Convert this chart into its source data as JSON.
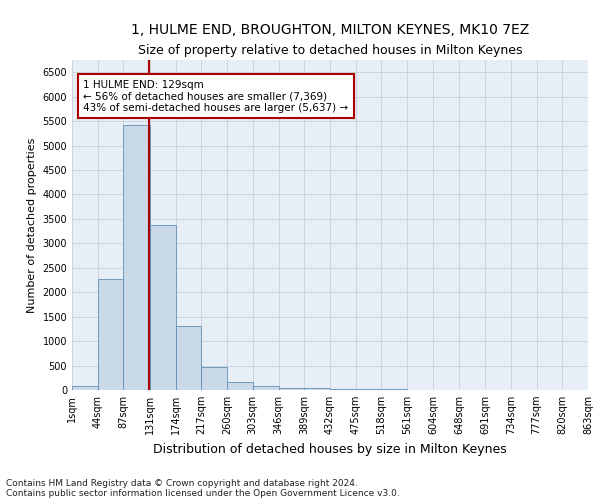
{
  "title": "1, HULME END, BROUGHTON, MILTON KEYNES, MK10 7EZ",
  "subtitle": "Size of property relative to detached houses in Milton Keynes",
  "xlabel": "Distribution of detached houses by size in Milton Keynes",
  "ylabel": "Number of detached properties",
  "footnote1": "Contains HM Land Registry data © Crown copyright and database right 2024.",
  "footnote2": "Contains public sector information licensed under the Open Government Licence v3.0.",
  "bin_edges": [
    1,
    44,
    87,
    131,
    174,
    217,
    260,
    303,
    346,
    389,
    432,
    475,
    518,
    561,
    604,
    648,
    691,
    734,
    777,
    820,
    863
  ],
  "bar_values": [
    75,
    2280,
    5420,
    3380,
    1310,
    480,
    160,
    75,
    50,
    40,
    30,
    20,
    15,
    10,
    8,
    5,
    3,
    2,
    1,
    1
  ],
  "bar_color": "#c9d9e8",
  "bar_edgecolor": "#6090b8",
  "bg_color": "#e8eef5",
  "grid_color": "#c8d0dc",
  "property_size": 129,
  "property_label": "1 HULME END: 129sqm",
  "annotation_line1": "← 56% of detached houses are smaller (7,369)",
  "annotation_line2": "43% of semi-detached houses are larger (5,637) →",
  "vline_color": "#aa0000",
  "annotation_box_edgecolor": "#aa0000",
  "ylim_max": 6750,
  "yticks": [
    0,
    500,
    1000,
    1500,
    2000,
    2500,
    3000,
    3500,
    4000,
    4500,
    5000,
    5500,
    6000,
    6500
  ],
  "title_fontsize": 10,
  "subtitle_fontsize": 9,
  "xlabel_fontsize": 9,
  "ylabel_fontsize": 8,
  "tick_fontsize": 7,
  "annot_fontsize": 7.5,
  "footnote_fontsize": 6.5
}
